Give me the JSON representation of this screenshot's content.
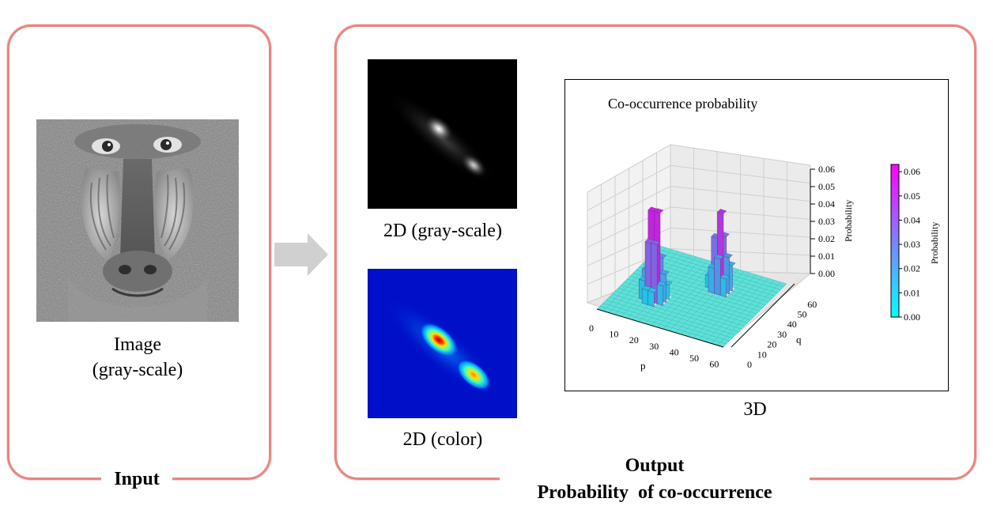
{
  "input": {
    "panel_title": "Input",
    "image_caption_line1": "Image",
    "image_caption_line2": "(gray-scale)",
    "image_icon": "baboon-grayscale-image"
  },
  "output": {
    "panel_title_line1": "Output",
    "panel_title_line2": "Probability  of co-occurrence",
    "gray_caption": "2D (gray-scale)",
    "color_caption": "2D (color)",
    "chart_caption": "3D"
  },
  "arrow_icon": "right-arrow-icon",
  "colors": {
    "panel_border": "#e88582",
    "arrow": "#d0d0d0",
    "surface_low": "#00e5e5",
    "surface_high": "#e000e0"
  },
  "chart_data": {
    "type": "surface3d",
    "title": "Co-occurrence probability",
    "xlabel": "p",
    "ylabel": "q",
    "zlabel": "Probability",
    "x_ticks": [
      "0",
      "10",
      "20",
      "30",
      "40",
      "50",
      "60"
    ],
    "y_ticks": [
      "0",
      "10",
      "20",
      "30",
      "40",
      "50",
      "60"
    ],
    "z_ticks": [
      "0.00",
      "0.01",
      "0.02",
      "0.03",
      "0.04",
      "0.05",
      "0.06"
    ],
    "xlim": [
      0,
      63
    ],
    "ylim": [
      0,
      63
    ],
    "zlim": [
      0,
      0.06
    ],
    "peaks": [
      {
        "p": 18,
        "q": 22,
        "probability": 0.057
      },
      {
        "p": 40,
        "q": 44,
        "probability": 0.044
      }
    ],
    "colorbar": {
      "label": "Probability",
      "ticks": [
        "0.00",
        "0.01",
        "0.02",
        "0.03",
        "0.04",
        "0.05",
        "0.06"
      ],
      "min_color": "#00ffff",
      "max_color": "#ff00ff"
    }
  }
}
